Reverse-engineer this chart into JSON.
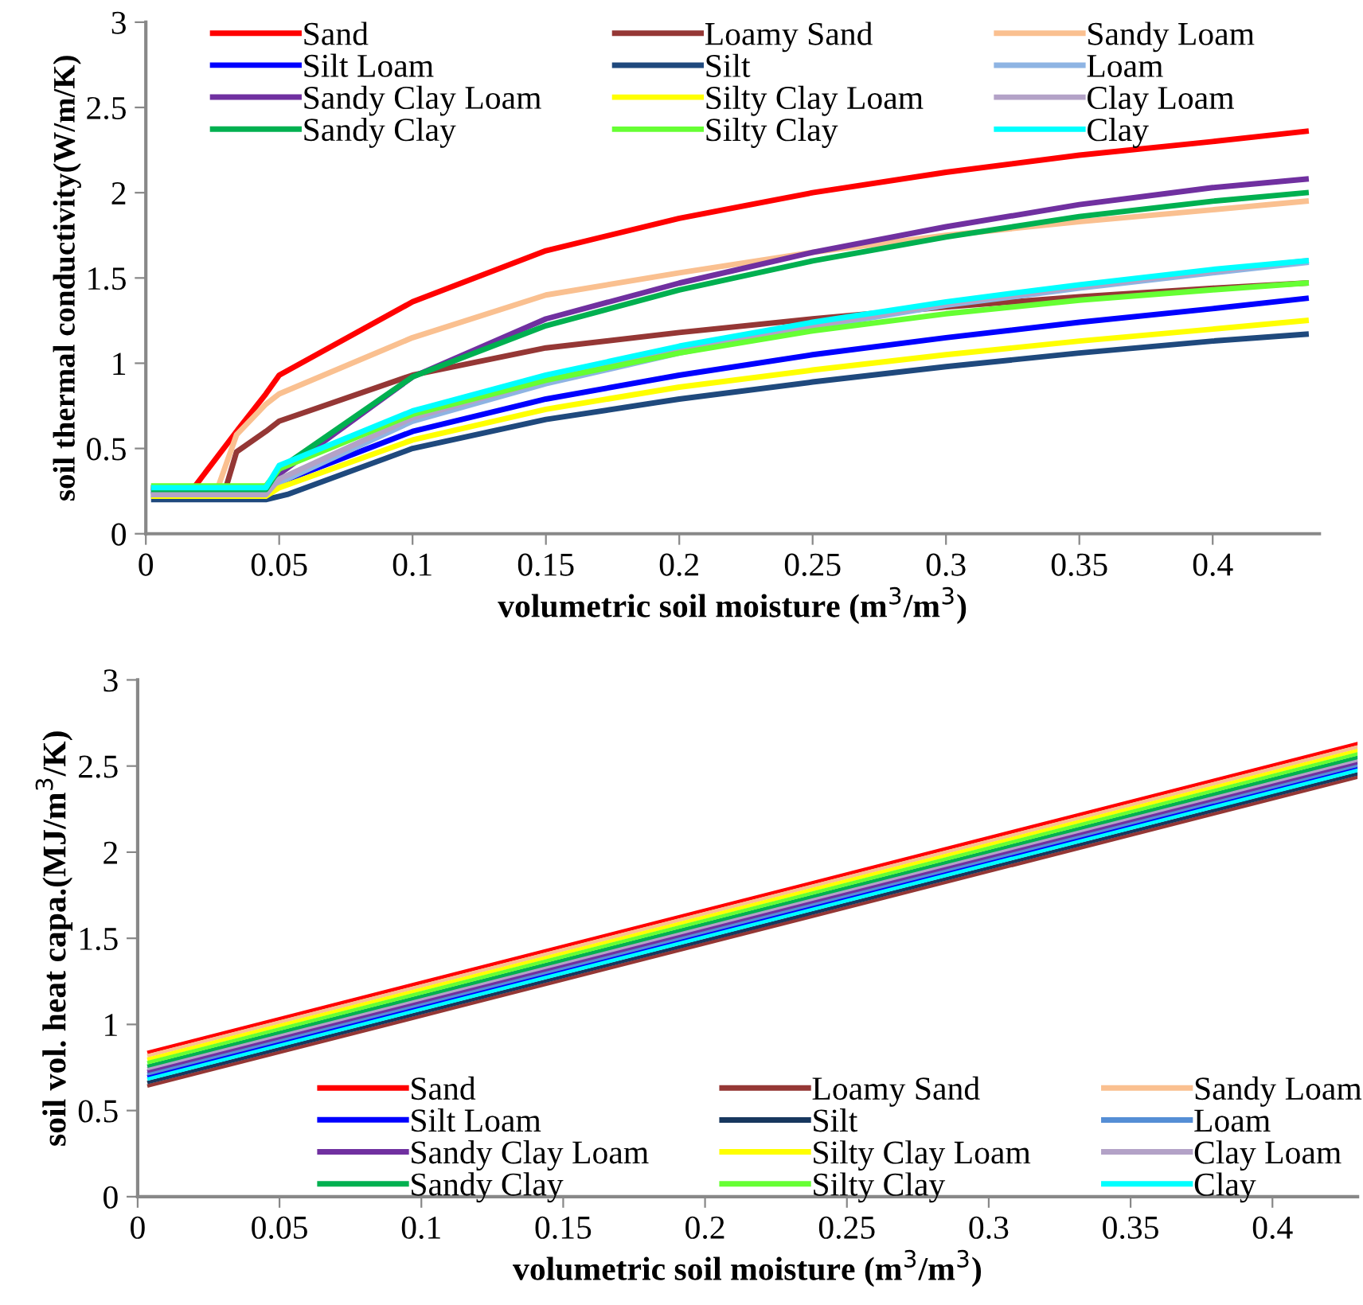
{
  "chart_data": [
    {
      "type": "line",
      "xlabel": "volumetric soil moisture (m$^{3}$/m$^{3}$)",
      "ylabel": "soil thermal conductivity(W/m/K)",
      "xlim": [
        0,
        0.44
      ],
      "xticks": [
        0,
        0.05,
        0.1,
        0.15,
        0.2,
        0.25,
        0.3,
        0.35,
        0.4
      ],
      "ylim": [
        0,
        3
      ],
      "yticks": [
        0,
        0.5,
        1,
        1.5,
        2,
        2.5,
        3
      ],
      "grid": false,
      "legend": "top left",
      "marker": "none",
      "line_style": "solid",
      "series": [
        {
          "name": "Sand",
          "color": "#ff0000",
          "x": [
            0.003,
            0.018,
            0.035,
            0.045,
            0.05,
            0.1,
            0.15,
            0.2,
            0.25,
            0.3,
            0.35,
            0.4,
            0.435
          ],
          "values": [
            0.27,
            0.27,
            0.62,
            0.82,
            0.93,
            1.36,
            1.66,
            1.85,
            2.0,
            2.12,
            2.22,
            2.3,
            2.36
          ]
        },
        {
          "name": "Loamy Sand",
          "color": "#953735",
          "x": [
            0.003,
            0.03,
            0.034,
            0.045,
            0.05,
            0.1,
            0.15,
            0.2,
            0.25,
            0.3,
            0.35,
            0.4,
            0.435
          ],
          "values": [
            0.27,
            0.27,
            0.48,
            0.6,
            0.66,
            0.93,
            1.09,
            1.18,
            1.26,
            1.33,
            1.39,
            1.44,
            1.47
          ]
        },
        {
          "name": "Sandy Loam",
          "color": "#fac090",
          "x": [
            0.003,
            0.027,
            0.034,
            0.045,
            0.05,
            0.1,
            0.15,
            0.2,
            0.25,
            0.3,
            0.35,
            0.4,
            0.435
          ],
          "values": [
            0.27,
            0.27,
            0.58,
            0.76,
            0.82,
            1.15,
            1.4,
            1.53,
            1.65,
            1.75,
            1.83,
            1.9,
            1.95
          ]
        },
        {
          "name": "Silt Loam",
          "color": "#0000ff",
          "x": [
            0.003,
            0.045,
            0.05,
            0.1,
            0.15,
            0.2,
            0.25,
            0.3,
            0.35,
            0.4,
            0.435
          ],
          "values": [
            0.23,
            0.23,
            0.3,
            0.6,
            0.79,
            0.93,
            1.05,
            1.15,
            1.24,
            1.32,
            1.38
          ]
        },
        {
          "name": "Silt",
          "color": "#1f497d",
          "x": [
            0.003,
            0.045,
            0.053,
            0.1,
            0.15,
            0.2,
            0.25,
            0.3,
            0.35,
            0.4,
            0.435
          ],
          "values": [
            0.2,
            0.2,
            0.23,
            0.5,
            0.67,
            0.79,
            0.89,
            0.98,
            1.06,
            1.13,
            1.17
          ]
        },
        {
          "name": "Loam",
          "color": "#8eb4e3",
          "x": [
            0.003,
            0.045,
            0.05,
            0.1,
            0.15,
            0.2,
            0.25,
            0.3,
            0.35,
            0.4,
            0.435
          ],
          "values": [
            0.24,
            0.24,
            0.3,
            0.66,
            0.88,
            1.06,
            1.21,
            1.34,
            1.44,
            1.53,
            1.59
          ]
        },
        {
          "name": "Sandy Clay Loam",
          "color": "#7030a0",
          "x": [
            0.003,
            0.045,
            0.05,
            0.1,
            0.15,
            0.2,
            0.25,
            0.3,
            0.35,
            0.4,
            0.435
          ],
          "values": [
            0.25,
            0.25,
            0.35,
            0.92,
            1.26,
            1.47,
            1.65,
            1.8,
            1.93,
            2.03,
            2.08
          ]
        },
        {
          "name": "Silty Clay Loam",
          "color": "#ffff00",
          "x": [
            0.003,
            0.045,
            0.05,
            0.1,
            0.15,
            0.2,
            0.25,
            0.3,
            0.35,
            0.4,
            0.435
          ],
          "values": [
            0.22,
            0.22,
            0.27,
            0.55,
            0.73,
            0.86,
            0.96,
            1.05,
            1.13,
            1.2,
            1.25
          ]
        },
        {
          "name": "Clay Loam",
          "color": "#b3a2c7",
          "x": [
            0.003,
            0.045,
            0.05,
            0.1,
            0.15,
            0.2,
            0.25,
            0.3,
            0.35,
            0.4,
            0.435
          ],
          "values": [
            0.23,
            0.23,
            0.32,
            0.68,
            0.9,
            1.07,
            1.22,
            1.35,
            1.45,
            1.54,
            1.6
          ]
        },
        {
          "name": "Sandy Clay",
          "color": "#00b050",
          "x": [
            0.003,
            0.045,
            0.05,
            0.1,
            0.15,
            0.2,
            0.25,
            0.3,
            0.35,
            0.4,
            0.435
          ],
          "values": [
            0.26,
            0.26,
            0.38,
            0.92,
            1.22,
            1.43,
            1.6,
            1.74,
            1.86,
            1.95,
            2.0
          ]
        },
        {
          "name": "Silty Clay",
          "color": "#66ff33",
          "x": [
            0.003,
            0.045,
            0.05,
            0.1,
            0.15,
            0.2,
            0.25,
            0.3,
            0.35,
            0.4,
            0.435
          ],
          "values": [
            0.28,
            0.28,
            0.38,
            0.7,
            0.9,
            1.06,
            1.19,
            1.29,
            1.37,
            1.43,
            1.47
          ]
        },
        {
          "name": "Clay",
          "color": "#00ffff",
          "x": [
            0.003,
            0.045,
            0.05,
            0.1,
            0.15,
            0.2,
            0.25,
            0.3,
            0.35,
            0.4,
            0.435
          ],
          "values": [
            0.27,
            0.27,
            0.4,
            0.72,
            0.93,
            1.1,
            1.24,
            1.36,
            1.46,
            1.55,
            1.6
          ]
        }
      ]
    },
    {
      "type": "line",
      "xlabel": "volumetric soil moisture (m$^{3}$/m$^{3}$)",
      "ylabel": "soil vol. heat capa.(MJ/m$^{3}$/K)",
      "xlim": [
        0,
        0.43
      ],
      "xticks": [
        0,
        0.05,
        0.1,
        0.15,
        0.2,
        0.25,
        0.3,
        0.35,
        0.4
      ],
      "ylim": [
        0,
        3
      ],
      "yticks": [
        0,
        0.5,
        1,
        1.5,
        2,
        2.5,
        3
      ],
      "grid": false,
      "legend": "bottom right",
      "marker": "none",
      "line_style": "solid",
      "series": [
        {
          "name": "Sand",
          "color": "#ff0000",
          "x": [
            0.004,
            0.43
          ],
          "values": [
            0.84,
            2.63
          ]
        },
        {
          "name": "Loamy Sand",
          "color": "#953735",
          "x": [
            0.004,
            0.43
          ],
          "values": [
            0.645,
            2.435
          ]
        },
        {
          "name": "Sandy Loam",
          "color": "#fac090",
          "x": [
            0.004,
            0.43
          ],
          "values": [
            0.82,
            2.61
          ]
        },
        {
          "name": "Silt Loam",
          "color": "#0000ff",
          "x": [
            0.004,
            0.43
          ],
          "values": [
            0.7,
            2.49
          ]
        },
        {
          "name": "Silt",
          "color": "#17375e",
          "x": [
            0.004,
            0.43
          ],
          "values": [
            0.665,
            2.455
          ]
        },
        {
          "name": "Loam",
          "color": "#558ed5",
          "x": [
            0.004,
            0.43
          ],
          "values": [
            0.715,
            2.505
          ]
        },
        {
          "name": "Sandy Clay Loam",
          "color": "#7030a0",
          "x": [
            0.004,
            0.43
          ],
          "values": [
            0.73,
            2.52
          ]
        },
        {
          "name": "Silty Clay Loam",
          "color": "#ffff00",
          "x": [
            0.004,
            0.43
          ],
          "values": [
            0.8,
            2.59
          ]
        },
        {
          "name": "Clay Loam",
          "color": "#b3a2c7",
          "x": [
            0.004,
            0.43
          ],
          "values": [
            0.745,
            2.535
          ]
        },
        {
          "name": "Sandy Clay",
          "color": "#00b050",
          "x": [
            0.004,
            0.43
          ],
          "values": [
            0.76,
            2.55
          ]
        },
        {
          "name": "Silty Clay",
          "color": "#66ff33",
          "x": [
            0.004,
            0.43
          ],
          "values": [
            0.78,
            2.57
          ]
        },
        {
          "name": "Clay",
          "color": "#00ffff",
          "x": [
            0.004,
            0.43
          ],
          "values": [
            0.685,
            2.475
          ]
        }
      ]
    }
  ]
}
